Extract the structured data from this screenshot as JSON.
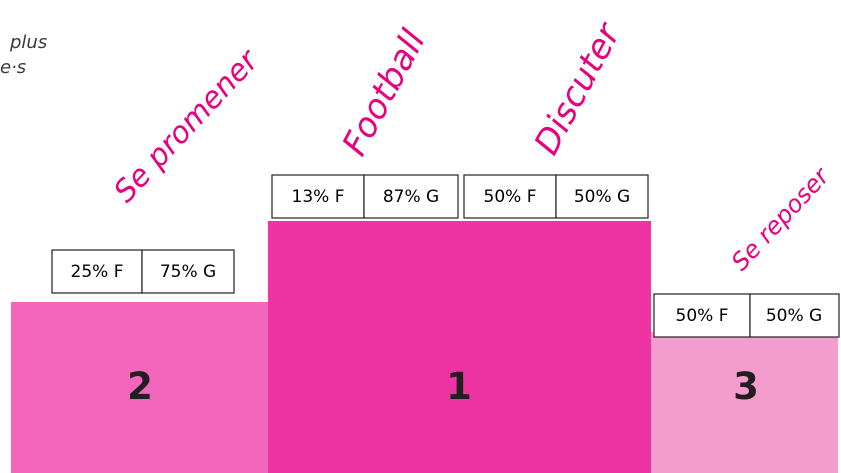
{
  "title_fragment": [
    "plus",
    "e·s"
  ],
  "chart_data": {
    "type": "podium",
    "title": "",
    "places": [
      {
        "rank": "2",
        "activity": "Se promener",
        "female": "25% F",
        "male": "75% G",
        "color": "#f266bb",
        "level": 0.68
      },
      {
        "rank": "1",
        "activity": "Football",
        "female": "13% F",
        "male": "87% G",
        "activity2": "Discuter",
        "female2": "50% F",
        "male2": "50% G",
        "color": "#ee34a3",
        "level": 1.0
      },
      {
        "rank": "3",
        "activity": "Se reposer",
        "female": "50% F",
        "male": "50% G",
        "color": "#f59ccf",
        "level": 0.56
      }
    ]
  }
}
